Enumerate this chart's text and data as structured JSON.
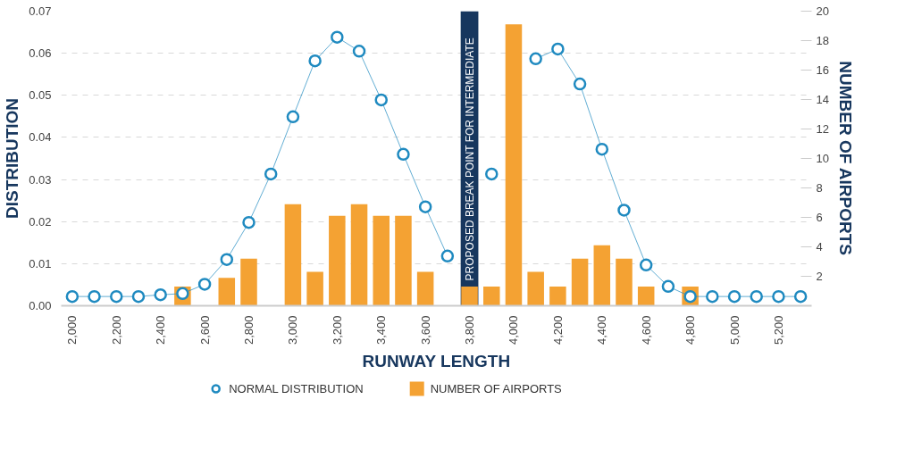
{
  "chart_data": {
    "type": "bar",
    "xlabel": "RUNWAY LENGTH",
    "ylabel": "DISTRIBUTION",
    "y2label": "NUMBER OF AIRPORTS",
    "x": [
      2000,
      2100,
      2200,
      2300,
      2400,
      2500,
      2600,
      2700,
      2800,
      2900,
      3000,
      3100,
      3200,
      3300,
      3400,
      3500,
      3600,
      3700,
      3800,
      3900,
      4000,
      4100,
      4200,
      4300,
      4400,
      4500,
      4600,
      4700,
      4800,
      4900,
      5000,
      5100,
      5200,
      5300
    ],
    "series": [
      {
        "name": "NORMAL DISTRIBUTION",
        "type": "line",
        "color": "#1f8ac0",
        "marker": "circle",
        "values": [
          0.0022,
          0.0022,
          0.0022,
          0.0022,
          0.0026,
          0.0029,
          0.0051,
          0.011,
          0.0198,
          0.0313,
          0.0449,
          0.0582,
          0.0638,
          0.0605,
          0.0489,
          0.036,
          0.0235,
          0.0118,
          null,
          0.0313,
          null,
          0.0587,
          0.061,
          0.0527,
          0.0372,
          0.0227,
          0.0097,
          0.0046,
          0.0022,
          0.0022,
          0.0022,
          0.0022,
          0.0022,
          0.0022
        ]
      },
      {
        "name": "NUMBER OF AIRPORTS",
        "axis": "y2",
        "color": "#f4a233",
        "values": [
          0,
          0,
          0,
          0,
          0,
          1.3,
          0,
          1.9,
          3.2,
          0,
          6.9,
          2.3,
          6.1,
          6.9,
          6.1,
          6.1,
          2.3,
          0,
          1.3,
          1.3,
          19.1,
          2.3,
          1.3,
          3.2,
          4.1,
          3.2,
          1.3,
          0,
          1.3,
          0,
          0,
          0,
          0,
          0
        ]
      }
    ],
    "xlim": [
      1950,
      5350
    ],
    "xticks": [
      {
        "value": 2000,
        "label": "2,000"
      },
      {
        "value": 2200,
        "label": "2,200"
      },
      {
        "value": 2400,
        "label": "2,400"
      },
      {
        "value": 2600,
        "label": "2,600"
      },
      {
        "value": 2800,
        "label": "2,800"
      },
      {
        "value": 3000,
        "label": "3,000"
      },
      {
        "value": 3200,
        "label": "3,200"
      },
      {
        "value": 3400,
        "label": "3,400"
      },
      {
        "value": 3600,
        "label": "3,600"
      },
      {
        "value": 3800,
        "label": "3,800"
      },
      {
        "value": 4000,
        "label": "4,000"
      },
      {
        "value": 4200,
        "label": "4,200"
      },
      {
        "value": 4400,
        "label": "4,400"
      },
      {
        "value": 4600,
        "label": "4,600"
      },
      {
        "value": 4800,
        "label": "4,800"
      },
      {
        "value": 5000,
        "label": "5,000"
      },
      {
        "value": 5200,
        "label": "5,200"
      }
    ],
    "ylim": [
      0,
      0.07
    ],
    "yticks": [
      {
        "value": 0,
        "label": "0.00"
      },
      {
        "value": 0.01,
        "label": "0.01"
      },
      {
        "value": 0.02,
        "label": "0.02"
      },
      {
        "value": 0.03,
        "label": "0.03"
      },
      {
        "value": 0.04,
        "label": "0.04"
      },
      {
        "value": 0.05,
        "label": "0.05"
      },
      {
        "value": 0.06,
        "label": "0.06"
      },
      {
        "value": 0.07,
        "label": "0.07"
      }
    ],
    "y2lim": [
      0,
      20
    ],
    "y2ticks": [
      2,
      4,
      6,
      8,
      10,
      12,
      14,
      16,
      18,
      20
    ],
    "bands": [
      {
        "axis": "x",
        "from": 3760,
        "to": 3840,
        "label": "PROPOSED BREAK POINT FOR INTERMEDIATE",
        "color": "#17375e"
      }
    ],
    "grid": "y",
    "legend": "bottom"
  }
}
